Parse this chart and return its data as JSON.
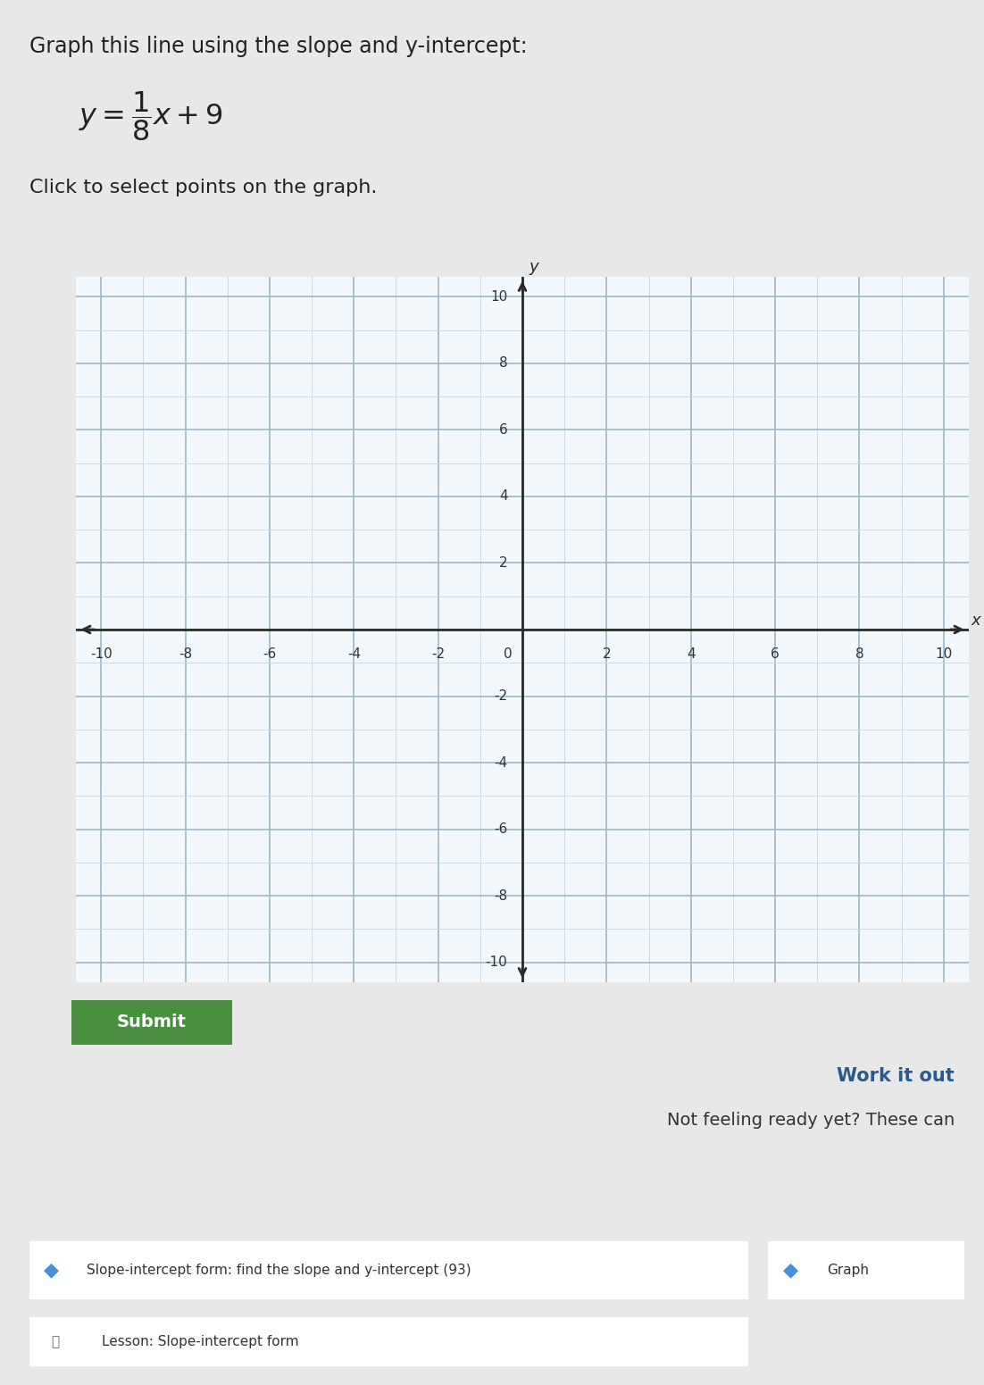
{
  "title_line1": "Graph this line using the slope and y-intercept:",
  "subtitle": "Click to select points on the graph.",
  "slope": 0.125,
  "y_intercept": 9,
  "xmin": -10,
  "xmax": 10,
  "ymin": -10,
  "ymax": 10,
  "xticks": [
    -10,
    -8,
    -6,
    -4,
    -2,
    0,
    2,
    4,
    6,
    8,
    10
  ],
  "yticks": [
    -10,
    -8,
    -6,
    -4,
    -2,
    0,
    2,
    4,
    6,
    8,
    10
  ],
  "grid_color_major": "#9db8cc",
  "grid_color_minor": "#c5d8e5",
  "axis_color": "#2a2a2a",
  "background_color": "#e8e8e8",
  "graph_bg_color": "#ddeaf2",
  "graph_inner_bg": "#f2f8fc",
  "submit_button_color": "#4a8f3f",
  "submit_text": "Submit",
  "work_it_out": "Work it out",
  "not_ready": "Not feeling ready yet? These can",
  "lesson_link1": "Slope-intercept form: find the slope and y-intercept (93)",
  "lesson_link2": "Graph",
  "lesson_footer": "Lesson: Slope-intercept form",
  "teal_bg": "#8ec8d8",
  "title_fontsize": 17,
  "subtitle_fontsize": 16,
  "tick_fontsize": 11,
  "axis_label_fontsize": 13
}
